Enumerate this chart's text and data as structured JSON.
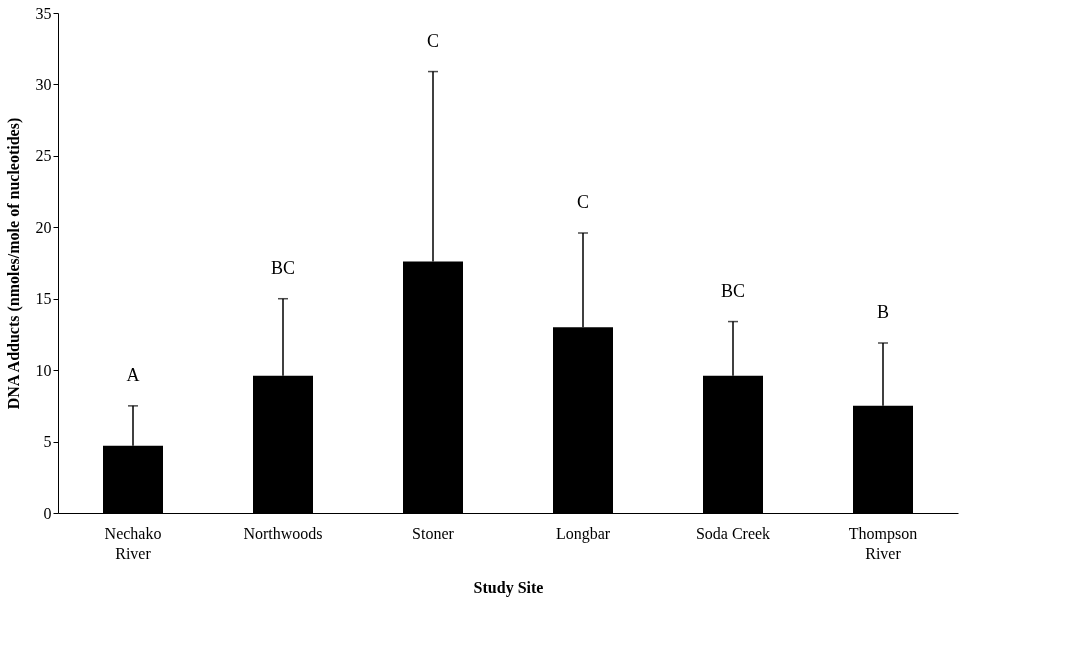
{
  "chart_data": {
    "type": "bar",
    "xlabel": "Study Site",
    "ylabel": "DNA Adducts (nmoles/mole of nucleotides)",
    "categories": [
      "Nechako\nRiver",
      "Northwoods",
      "Stoner",
      "Longbar",
      "Soda Creek",
      "Thompson\nRiver"
    ],
    "values": [
      4.7,
      9.6,
      17.6,
      13.0,
      9.6,
      7.5
    ],
    "errors": [
      [
        4.7,
        7.5
      ],
      [
        9.6,
        15.0
      ],
      [
        17.6,
        30.9
      ],
      [
        13.0,
        19.6
      ],
      [
        9.6,
        13.4
      ],
      [
        7.5,
        11.9
      ]
    ],
    "color": "#000000",
    "ylim": [
      0,
      35
    ],
    "yticks": [
      0,
      5,
      10,
      15,
      20,
      25,
      30,
      35
    ],
    "grid": false,
    "annotations": [
      "A",
      "BC",
      "C",
      "C",
      "BC",
      "B"
    ]
  }
}
